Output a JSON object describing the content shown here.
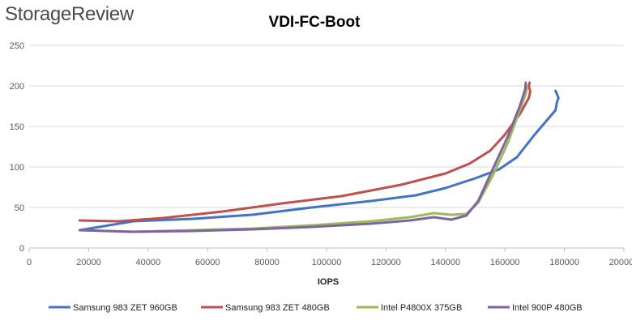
{
  "brand": "StorageReview",
  "chart_data": {
    "type": "line",
    "title": "VDI-FC-Boot",
    "xlabel": "IOPS",
    "ylabel": "",
    "xlim": [
      0,
      200000
    ],
    "ylim": [
      0,
      250
    ],
    "x_ticks": [
      0,
      20000,
      40000,
      60000,
      80000,
      100000,
      120000,
      140000,
      160000,
      180000,
      200000
    ],
    "x_tick_labels": [
      "0",
      "20000",
      "40000",
      "60000",
      "80000",
      "100000",
      "120000",
      "140000",
      "160000",
      "180000",
      "200000"
    ],
    "y_ticks": [
      0,
      50,
      100,
      150,
      200,
      250
    ],
    "y_tick_labels": [
      "0",
      "50",
      "100",
      "150",
      "200",
      "250"
    ],
    "grid": "horizontal",
    "legend_position": "bottom",
    "series": [
      {
        "name": "Samsung 983 ZET 960GB",
        "color": "#4472C4",
        "points": [
          [
            17000,
            22
          ],
          [
            35000,
            33
          ],
          [
            55000,
            36
          ],
          [
            75000,
            41
          ],
          [
            95000,
            50
          ],
          [
            115000,
            58
          ],
          [
            130000,
            65
          ],
          [
            140000,
            74
          ],
          [
            150000,
            86
          ],
          [
            158000,
            97
          ],
          [
            164000,
            112
          ],
          [
            170000,
            140
          ],
          [
            177000,
            170
          ],
          [
            177500,
            180
          ],
          [
            178000,
            185
          ],
          [
            177500,
            190
          ],
          [
            177000,
            194
          ]
        ]
      },
      {
        "name": "Samsung 983 ZET 480GB",
        "color": "#C0504D",
        "points": [
          [
            17000,
            34
          ],
          [
            30000,
            33
          ],
          [
            45000,
            37
          ],
          [
            65000,
            45
          ],
          [
            85000,
            55
          ],
          [
            105000,
            64
          ],
          [
            125000,
            78
          ],
          [
            140000,
            92
          ],
          [
            148000,
            104
          ],
          [
            155000,
            120
          ],
          [
            160000,
            140
          ],
          [
            165000,
            165
          ],
          [
            168000,
            185
          ],
          [
            168500,
            193
          ],
          [
            168000,
            200
          ],
          [
            168300,
            204
          ]
        ]
      },
      {
        "name": "Intel P4800X 375GB",
        "color": "#9BBB59",
        "points": [
          [
            17000,
            22
          ],
          [
            35000,
            20
          ],
          [
            55000,
            22
          ],
          [
            75000,
            24
          ],
          [
            95000,
            28
          ],
          [
            115000,
            33
          ],
          [
            128000,
            38
          ],
          [
            136000,
            43
          ],
          [
            142000,
            41
          ],
          [
            147000,
            42
          ],
          [
            151000,
            56
          ],
          [
            156000,
            90
          ],
          [
            161000,
            130
          ],
          [
            165000,
            170
          ],
          [
            167000,
            190
          ],
          [
            167500,
            200
          ]
        ]
      },
      {
        "name": "Intel 900P 480GB",
        "color": "#8064A2",
        "points": [
          [
            17000,
            22
          ],
          [
            35000,
            20
          ],
          [
            55000,
            21
          ],
          [
            75000,
            23
          ],
          [
            95000,
            26
          ],
          [
            115000,
            30
          ],
          [
            128000,
            34
          ],
          [
            136000,
            38
          ],
          [
            142000,
            35
          ],
          [
            147000,
            40
          ],
          [
            151000,
            58
          ],
          [
            156000,
            98
          ],
          [
            161000,
            138
          ],
          [
            165000,
            175
          ],
          [
            166800,
            196
          ],
          [
            167000,
            204
          ]
        ]
      }
    ]
  }
}
